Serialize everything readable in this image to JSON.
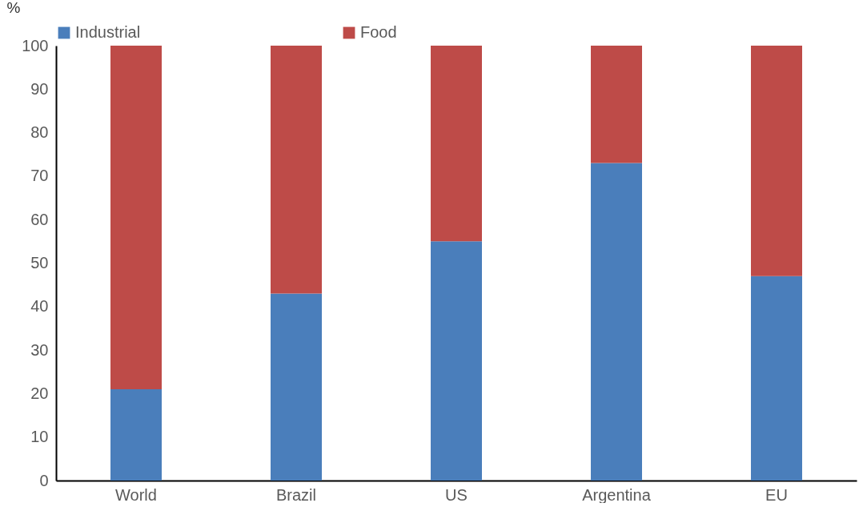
{
  "chart_data": {
    "type": "bar",
    "stacked": true,
    "ylabel": "%",
    "categories": [
      "World",
      "Brazil",
      "US",
      "Argentina",
      "EU"
    ],
    "series": [
      {
        "name": "Industrial",
        "color": "#4a7ebb",
        "values": [
          21,
          43,
          55,
          73,
          47
        ]
      },
      {
        "name": "Food",
        "color": "#be4b48",
        "values": [
          79,
          57,
          45,
          27,
          53
        ]
      }
    ],
    "ylim": [
      0,
      100
    ],
    "yticks": [
      0,
      10,
      20,
      30,
      40,
      50,
      60,
      70,
      80,
      90,
      100
    ],
    "grid": false,
    "legend": "top"
  }
}
